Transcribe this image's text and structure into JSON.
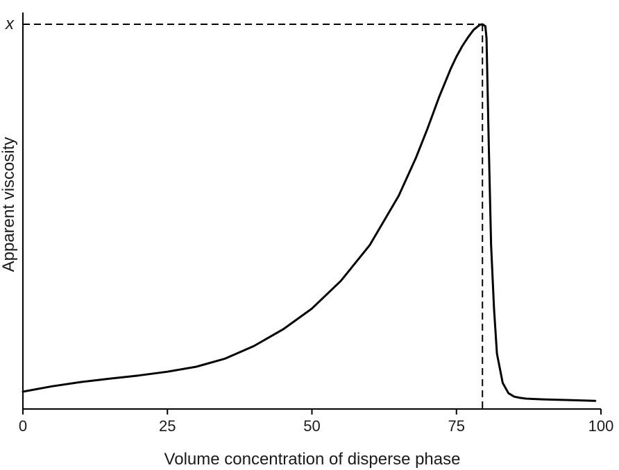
{
  "chart_data": {
    "type": "line",
    "title": "",
    "xlabel": "Volume concentration of disperse phase",
    "ylabel": "Apparent viscosity",
    "xlim": [
      0,
      100
    ],
    "ylim": [
      0,
      100
    ],
    "x_ticks": [
      0,
      25,
      50,
      75,
      100
    ],
    "x_tick_labels": [
      "0",
      "25",
      "50",
      "75",
      "100"
    ],
    "y_ticks_shown": false,
    "grid": false,
    "legend": "none",
    "line_color": "#000000",
    "peak_marker": {
      "label": "x",
      "x": 79.5,
      "y": 100,
      "style": "dashed"
    },
    "series": [
      {
        "values_x": [
          0,
          5,
          10,
          15,
          20,
          25,
          30,
          35,
          40,
          45,
          50,
          55,
          60,
          65,
          68,
          70,
          72,
          74,
          75,
          76,
          77,
          78,
          79,
          79.5,
          80,
          80.2,
          80.6,
          81,
          81.5,
          82,
          83,
          84,
          85,
          86,
          87,
          90,
          95,
          99
        ],
        "values_y": [
          4.5,
          5.9,
          7.0,
          7.9,
          8.7,
          9.7,
          11.0,
          13.1,
          16.4,
          20.7,
          26.1,
          33.3,
          42.6,
          55.4,
          65.3,
          72.9,
          81.1,
          88.4,
          91.6,
          94.3,
          96.6,
          98.6,
          99.8,
          100,
          99.5,
          96.4,
          68.1,
          42.5,
          26.1,
          14.4,
          6.8,
          4.1,
          3.2,
          2.9,
          2.7,
          2.5,
          2.3,
          2.1
        ]
      }
    ]
  }
}
